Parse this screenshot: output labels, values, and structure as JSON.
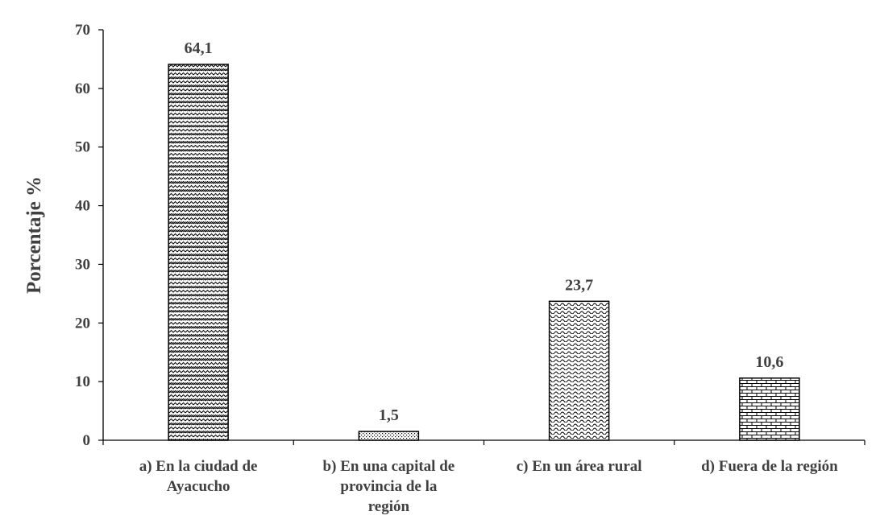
{
  "chart_data": {
    "type": "bar",
    "title": "",
    "xlabel": "",
    "ylabel": "Porcentaje %",
    "ylim": [
      0,
      70
    ],
    "yticks": [
      "0",
      "10",
      "20",
      "30",
      "40",
      "50",
      "60",
      "70"
    ],
    "categories": [
      [
        "a) En la ciudad de",
        "Ayacucho"
      ],
      [
        "b) En una capital de",
        "provincia de la",
        "región"
      ],
      [
        "c) En un área rural"
      ],
      [
        "d) Fuera de la región"
      ]
    ],
    "values": [
      64.1,
      1.5,
      23.7,
      10.6
    ],
    "value_labels": [
      "64,1",
      "1,5",
      "23,7",
      "10,6"
    ],
    "patterns": [
      "weave",
      "dots",
      "waves",
      "bricks"
    ],
    "grid": false,
    "legend": "none",
    "colors": {
      "text": "#404040",
      "bar_stroke": "#000000",
      "axis": "#000000",
      "background": "#ffffff"
    }
  }
}
